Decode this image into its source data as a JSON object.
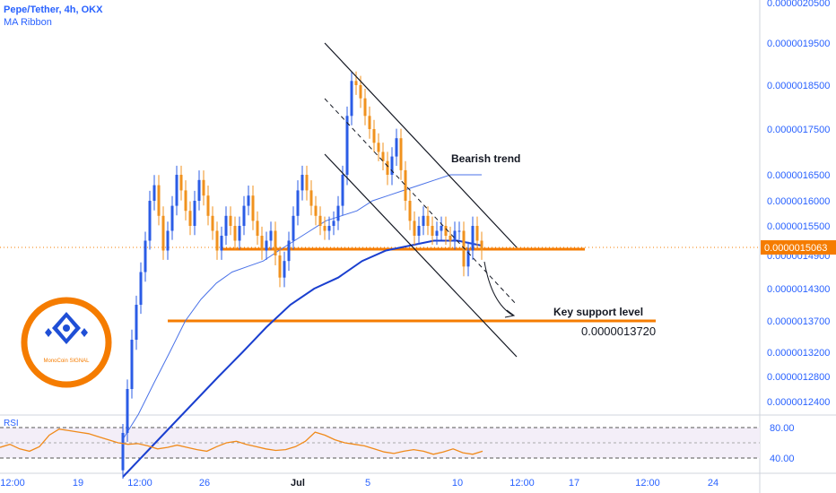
{
  "header": {
    "title": "Pepe/Tether, 4h, OKX",
    "indicator": "MA Ribbon"
  },
  "rsi_label": "RSI",
  "logo": {
    "text": "MonoCoin SIGNAL"
  },
  "colors": {
    "up": "#2b5ce6",
    "down": "#f0921e",
    "accent": "#f57c00",
    "axis_text": "#2962ff",
    "ma_fast": "#4a72e8",
    "ma_slow": "#1a3fcf",
    "rsi_line": "#f08a1a"
  },
  "chart_data": [
    {
      "type": "candlestick",
      "title": "Pepe/Tether, 4h, OKX",
      "y_ticks": [
        "0.0000020500",
        "0.0000019500",
        "0.0000018500",
        "0.0000017500",
        "0.0000016500",
        "0.0000016000",
        "0.0000015500",
        "0.0000014900",
        "0.0000014300",
        "0.0000013700",
        "0.0000013200",
        "0.0000012800",
        "0.0000012400"
      ],
      "last_price": "0.0000015063",
      "x_ticks": [
        "12:00",
        "19",
        "12:00",
        "26",
        "Jul",
        "5",
        "10",
        "12:00",
        "17",
        "12:00",
        "24"
      ],
      "annotations": {
        "bearish_trend": "Bearish trend",
        "support_label": "Key support level",
        "support_value": "0.0000013720"
      },
      "closes": [
        1.19e-06,
        1.26e-06,
        1.34e-06,
        1.4e-06,
        1.46e-06,
        1.52e-06,
        1.6e-06,
        1.63e-06,
        1.57e-06,
        1.5e-06,
        1.54e-06,
        1.59e-06,
        1.65e-06,
        1.62e-06,
        1.58e-06,
        1.55e-06,
        1.6e-06,
        1.64e-06,
        1.61e-06,
        1.57e-06,
        1.54e-06,
        1.5e-06,
        1.53e-06,
        1.57e-06,
        1.55e-06,
        1.52e-06,
        1.55e-06,
        1.59e-06,
        1.61e-06,
        1.56e-06,
        1.53e-06,
        1.5e-06,
        1.52e-06,
        1.54e-06,
        1.49e-06,
        1.45e-06,
        1.48e-06,
        1.52e-06,
        1.57e-06,
        1.62e-06,
        1.65e-06,
        1.62e-06,
        1.59e-06,
        1.57e-06,
        1.55e-06,
        1.54e-06,
        1.55e-06,
        1.56e-06,
        1.59e-06,
        1.65e-06,
        1.78e-06,
        1.86e-06,
        1.85e-06,
        1.82e-06,
        1.78e-06,
        1.75e-06,
        1.72e-06,
        1.7e-06,
        1.68e-06,
        1.65e-06,
        1.69e-06,
        1.73e-06,
        1.66e-06,
        1.6e-06,
        1.56e-06,
        1.53e-06,
        1.55e-06,
        1.57e-06,
        1.55e-06,
        1.53e-06,
        1.54e-06,
        1.55e-06,
        1.53e-06,
        1.52e-06,
        1.54e-06,
        1.54e-06,
        1.47e-06,
        1.5e-06,
        1.55e-06,
        1.52e-06,
        1.5e-06
      ],
      "ma_fast": [
        1.18e-06,
        1.22e-06,
        1.27e-06,
        1.32e-06,
        1.37e-06,
        1.41e-06,
        1.44e-06,
        1.46e-06,
        1.47e-06,
        1.48e-06,
        1.5e-06,
        1.52e-06,
        1.54e-06,
        1.56e-06,
        1.57e-06,
        1.58e-06,
        1.6e-06,
        1.61e-06,
        1.62e-06,
        1.63e-06,
        1.64e-06,
        1.65e-06,
        1.65e-06,
        1.65e-06
      ],
      "ma_slow": [
        1.12e-06,
        1.16e-06,
        1.2e-06,
        1.24e-06,
        1.28e-06,
        1.32e-06,
        1.36e-06,
        1.4e-06,
        1.43e-06,
        1.45e-06,
        1.48e-06,
        1.5e-06,
        1.51e-06,
        1.52e-06,
        1.52e-06,
        1.51e-06
      ],
      "rsi_ticks": [
        "80.00",
        "40.00"
      ],
      "rsi": [
        54,
        58,
        52,
        49,
        55,
        70,
        78,
        76,
        74,
        72,
        68,
        64,
        60,
        58,
        59,
        56,
        52,
        54,
        57,
        54,
        51,
        49,
        55,
        60,
        62,
        58,
        55,
        52,
        50,
        51,
        55,
        62,
        74,
        70,
        64,
        60,
        58,
        56,
        52,
        48,
        46,
        49,
        51,
        49,
        45,
        48,
        52,
        47,
        45,
        49
      ]
    }
  ]
}
